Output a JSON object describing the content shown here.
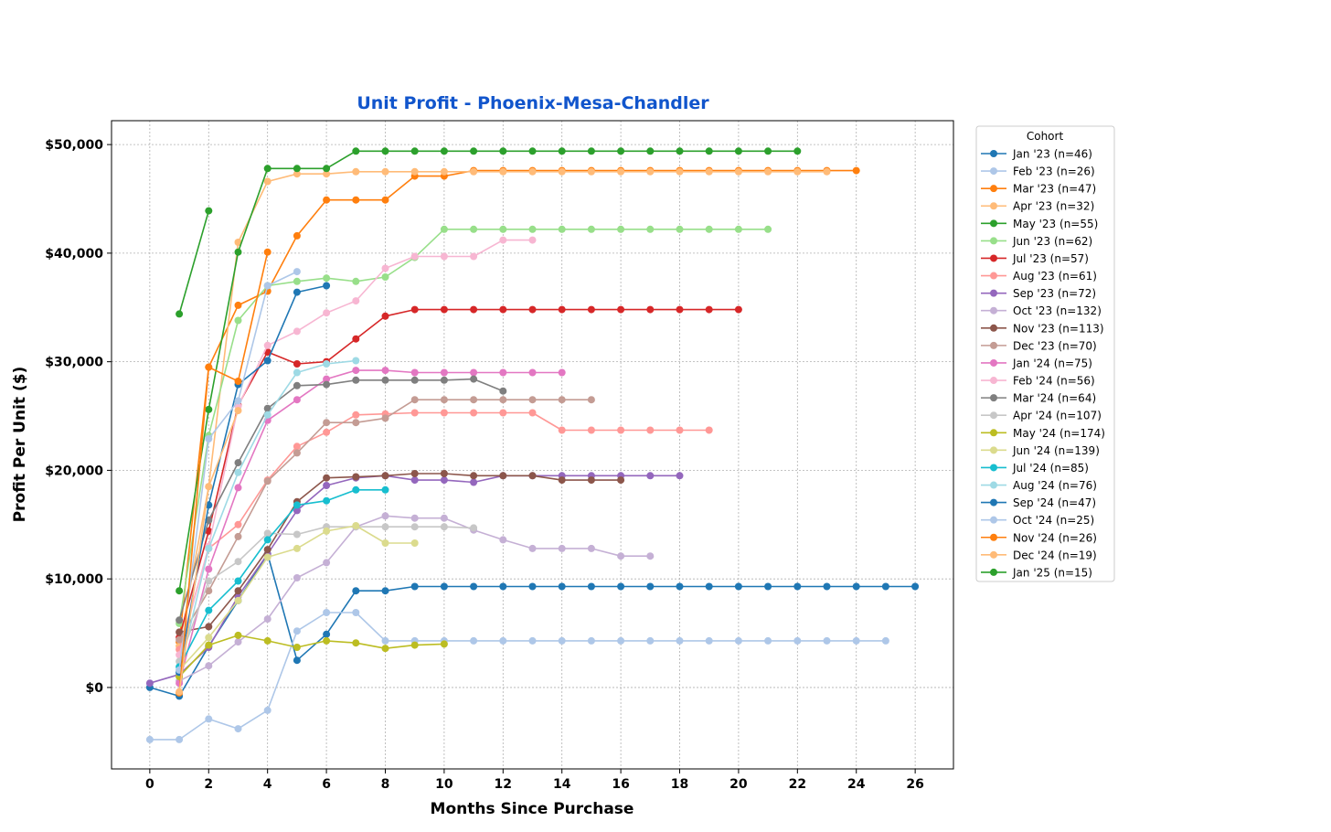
{
  "chart_data": {
    "type": "line",
    "title": "Unit Profit - Phoenix-Mesa-Chandler",
    "xlabel": "Months Since Purchase",
    "ylabel": "Profit Per Unit ($)",
    "xlim": [
      -1.3,
      27.3
    ],
    "ylim": [
      -7500,
      52200
    ],
    "xticks": [
      0,
      2,
      4,
      6,
      8,
      10,
      12,
      14,
      16,
      18,
      20,
      22,
      24,
      26
    ],
    "yticks": [
      0,
      10000,
      20000,
      30000,
      40000,
      50000
    ],
    "ytick_labels": [
      "$0",
      "$10,000",
      "$20,000",
      "$30,000",
      "$40,000",
      "$50,000"
    ],
    "grid": true,
    "legend_title": "Cohort",
    "legend_position": "outside-right",
    "series": [
      {
        "name": "Jan '23 (n=46)",
        "color": "#1f77b4",
        "x": [
          0,
          1,
          2,
          3,
          4,
          5,
          6,
          7,
          8,
          9,
          10,
          11,
          12,
          13,
          14,
          15,
          16,
          17,
          18,
          19,
          20,
          21,
          22,
          23,
          24,
          25,
          26
        ],
        "values": [
          0,
          -800,
          3800,
          8000,
          12300,
          2500,
          4900,
          8900,
          8900,
          9300,
          9300,
          9300,
          9300,
          9300,
          9300,
          9300,
          9300,
          9300,
          9300,
          9300,
          9300,
          9300,
          9300,
          9300,
          9300,
          9300,
          9300
        ]
      },
      {
        "name": "Feb '23 (n=26)",
        "color": "#aec7e8",
        "x": [
          0,
          1,
          2,
          3,
          4,
          5,
          6,
          7,
          8,
          9,
          10,
          11,
          12,
          13,
          14,
          15,
          16,
          17,
          18,
          19,
          20,
          21,
          22,
          23,
          24,
          25
        ],
        "values": [
          -4800,
          -4800,
          -2900,
          -3800,
          -2100,
          5200,
          6900,
          6900,
          4300,
          4300,
          4300,
          4300,
          4300,
          4300,
          4300,
          4300,
          4300,
          4300,
          4300,
          4300,
          4300,
          4300,
          4300,
          4300,
          4300,
          4300
        ]
      },
      {
        "name": "Mar '23 (n=47)",
        "color": "#ff7f0e",
        "x": [
          1,
          2,
          3,
          4,
          5,
          6,
          7,
          8,
          9,
          10,
          11,
          12,
          13,
          14,
          15,
          16,
          17,
          18,
          19,
          20,
          21,
          22,
          23,
          24
        ],
        "values": [
          4200,
          29500,
          35200,
          36500,
          41600,
          44900,
          44900,
          44900,
          47100,
          47100,
          47600,
          47600,
          47600,
          47600,
          47600,
          47600,
          47600,
          47600,
          47600,
          47600,
          47600,
          47600,
          47600,
          47600
        ]
      },
      {
        "name": "Apr '23 (n=32)",
        "color": "#ffbb78",
        "x": [
          1,
          2,
          3,
          4,
          5,
          6,
          7,
          8,
          9,
          10,
          11,
          12,
          13,
          14,
          15,
          16,
          17,
          18,
          19,
          20,
          21,
          22,
          23
        ],
        "values": [
          3800,
          18500,
          41000,
          46600,
          47300,
          47300,
          47500,
          47500,
          47500,
          47500,
          47500,
          47500,
          47500,
          47500,
          47500,
          47500,
          47500,
          47500,
          47500,
          47500,
          47500,
          47500,
          47500
        ]
      },
      {
        "name": "May '23 (n=55)",
        "color": "#2ca02c",
        "x": [
          1,
          2,
          3,
          4,
          5,
          6,
          7,
          8,
          9,
          10,
          11,
          12,
          13,
          14,
          15,
          16,
          17,
          18,
          19,
          20,
          21,
          22
        ],
        "values": [
          8900,
          25600,
          40100,
          47800,
          47800,
          47800,
          49400,
          49400,
          49400,
          49400,
          49400,
          49400,
          49400,
          49400,
          49400,
          49400,
          49400,
          49400,
          49400,
          49400,
          49400,
          49400
        ]
      },
      {
        "name": "Jun '23 (n=62)",
        "color": "#98df8a",
        "x": [
          1,
          2,
          3,
          4,
          5,
          6,
          7,
          8,
          9,
          10,
          11,
          12,
          13,
          14,
          15,
          16,
          17,
          18,
          19,
          20,
          21
        ],
        "values": [
          5900,
          23200,
          33800,
          37000,
          37400,
          37700,
          37400,
          37800,
          39600,
          42200,
          42200,
          42200,
          42200,
          42200,
          42200,
          42200,
          42200,
          42200,
          42200,
          42200,
          42200
        ]
      },
      {
        "name": "Jul '23 (n=57)",
        "color": "#d62728",
        "x": [
          1,
          2,
          3,
          4,
          5,
          6,
          7,
          8,
          9,
          10,
          11,
          12,
          13,
          14,
          15,
          16,
          17,
          18,
          19,
          20
        ],
        "values": [
          4600,
          14400,
          26000,
          30900,
          29800,
          30000,
          32100,
          34200,
          34800,
          34800,
          34800,
          34800,
          34800,
          34800,
          34800,
          34800,
          34800,
          34800,
          34800,
          34800
        ]
      },
      {
        "name": "Aug '23 (n=61)",
        "color": "#ff9896",
        "x": [
          1,
          2,
          3,
          4,
          5,
          6,
          7,
          8,
          9,
          10,
          11,
          12,
          13,
          14,
          15,
          16,
          17,
          18,
          19
        ],
        "values": [
          3500,
          12800,
          15000,
          19100,
          22200,
          23500,
          25100,
          25200,
          25300,
          25300,
          25300,
          25300,
          25300,
          23700,
          23700,
          23700,
          23700,
          23700,
          23700
        ]
      },
      {
        "name": "Sep '23 (n=72)",
        "color": "#9467bd",
        "x": [
          0,
          1,
          2,
          3,
          4,
          5,
          6,
          7,
          8,
          9,
          10,
          11,
          12,
          13,
          14,
          15,
          16,
          17,
          18
        ],
        "values": [
          400,
          1200,
          3700,
          8400,
          12300,
          16300,
          18600,
          19300,
          19500,
          19100,
          19100,
          18900,
          19500,
          19500,
          19500,
          19500,
          19500,
          19500,
          19500
        ]
      },
      {
        "name": "Oct '23 (n=132)",
        "color": "#c5b0d5",
        "x": [
          1,
          2,
          3,
          4,
          5,
          6,
          7,
          8,
          9,
          10,
          11,
          12,
          13,
          14,
          15,
          16,
          17
        ],
        "values": [
          600,
          2000,
          4200,
          6300,
          10100,
          11500,
          14800,
          15800,
          15600,
          15600,
          14500,
          13600,
          12800,
          12800,
          12800,
          12100,
          12100
        ]
      },
      {
        "name": "Nov '23 (n=113)",
        "color": "#8c564b",
        "x": [
          1,
          2,
          3,
          4,
          5,
          6,
          7,
          8,
          9,
          10,
          11,
          12,
          13,
          14,
          15,
          16
        ],
        "values": [
          5100,
          5600,
          8900,
          12700,
          17100,
          19300,
          19400,
          19500,
          19700,
          19700,
          19500,
          19500,
          19500,
          19100,
          19100,
          19100
        ]
      },
      {
        "name": "Dec '23 (n=70)",
        "color": "#c49c94",
        "x": [
          1,
          2,
          3,
          4,
          5,
          6,
          7,
          8,
          9,
          10,
          11,
          12,
          13,
          14,
          15
        ],
        "values": [
          4400,
          8900,
          13900,
          19000,
          21600,
          24400,
          24400,
          24800,
          26500,
          26500,
          26500,
          26500,
          26500,
          26500,
          26500
        ]
      },
      {
        "name": "Jan '24 (n=75)",
        "color": "#e377c2",
        "x": [
          1,
          2,
          3,
          4,
          5,
          6,
          7,
          8,
          9,
          10,
          11,
          12,
          13,
          14
        ],
        "values": [
          400,
          10900,
          18400,
          24600,
          26500,
          28400,
          29200,
          29200,
          29000,
          29000,
          29000,
          29000,
          29000,
          29000
        ]
      },
      {
        "name": "Feb '24 (n=56)",
        "color": "#f7b6d2",
        "x": [
          1,
          2,
          3,
          4,
          5,
          6,
          7,
          8,
          9,
          10,
          11,
          12,
          13
        ],
        "values": [
          3000,
          13000,
          25900,
          31500,
          32800,
          34500,
          35600,
          38600,
          39700,
          39700,
          39700,
          41200,
          41200
        ]
      },
      {
        "name": "Mar '24 (n=64)",
        "color": "#7f7f7f",
        "x": [
          1,
          2,
          3,
          4,
          5,
          6,
          7,
          8,
          9,
          10,
          11,
          12
        ],
        "values": [
          6200,
          15400,
          20700,
          25700,
          27800,
          27900,
          28300,
          28300,
          28300,
          28300,
          28400,
          27300
        ]
      },
      {
        "name": "Apr '24 (n=107)",
        "color": "#c7c7c7",
        "x": [
          1,
          2,
          3,
          4,
          5,
          6,
          7,
          8,
          9,
          10,
          11
        ],
        "values": [
          2400,
          9800,
          11600,
          14200,
          14100,
          14800,
          14800,
          14800,
          14800,
          14800,
          14700
        ]
      },
      {
        "name": "May '24 (n=174)",
        "color": "#bcbd22",
        "x": [
          1,
          2,
          3,
          4,
          5,
          6,
          7,
          8,
          9,
          10
        ],
        "values": [
          1000,
          3900,
          4800,
          4300,
          3700,
          4300,
          4100,
          3600,
          3900,
          4000
        ]
      },
      {
        "name": "Jun '24 (n=139)",
        "color": "#dbdb8d",
        "x": [
          1,
          2,
          3,
          4,
          5,
          6,
          7,
          8,
          9
        ],
        "values": [
          1600,
          4600,
          8000,
          12000,
          12800,
          14400,
          14900,
          13300,
          13300
        ]
      },
      {
        "name": "Jul '24 (n=85)",
        "color": "#17becf",
        "x": [
          1,
          2,
          3,
          4,
          5,
          6,
          7,
          8
        ],
        "values": [
          1900,
          7100,
          9800,
          13600,
          16800,
          17200,
          18200,
          18200
        ]
      },
      {
        "name": "Aug '24 (n=76)",
        "color": "#9edae5",
        "x": [
          1,
          2,
          3,
          4,
          5,
          6,
          7
        ],
        "values": [
          1400,
          12800,
          19800,
          25100,
          29000,
          29800,
          30100
        ]
      },
      {
        "name": "Sep '24 (n=47)",
        "color": "#1f77b4",
        "x": [
          1,
          2,
          3,
          4,
          5,
          6
        ],
        "values": [
          1400,
          16800,
          27900,
          30100,
          36400,
          37000
        ]
      },
      {
        "name": "Oct '24 (n=25)",
        "color": "#aec7e8",
        "x": [
          1,
          2,
          3,
          4,
          5
        ],
        "values": [
          1600,
          22900,
          26400,
          37000,
          38300
        ]
      },
      {
        "name": "Nov '24 (n=26)",
        "color": "#ff7f0e",
        "x": [
          1,
          2,
          3,
          4
        ],
        "values": [
          -500,
          29500,
          28200,
          40100
        ]
      },
      {
        "name": "Dec '24 (n=19)",
        "color": "#ffbb78",
        "x": [
          1,
          2,
          3
        ],
        "values": [
          -400,
          18500,
          25500
        ]
      },
      {
        "name": "Jan '25 (n=15)",
        "color": "#2ca02c",
        "x": [
          1,
          2
        ],
        "values": [
          34400,
          43900
        ]
      }
    ]
  }
}
